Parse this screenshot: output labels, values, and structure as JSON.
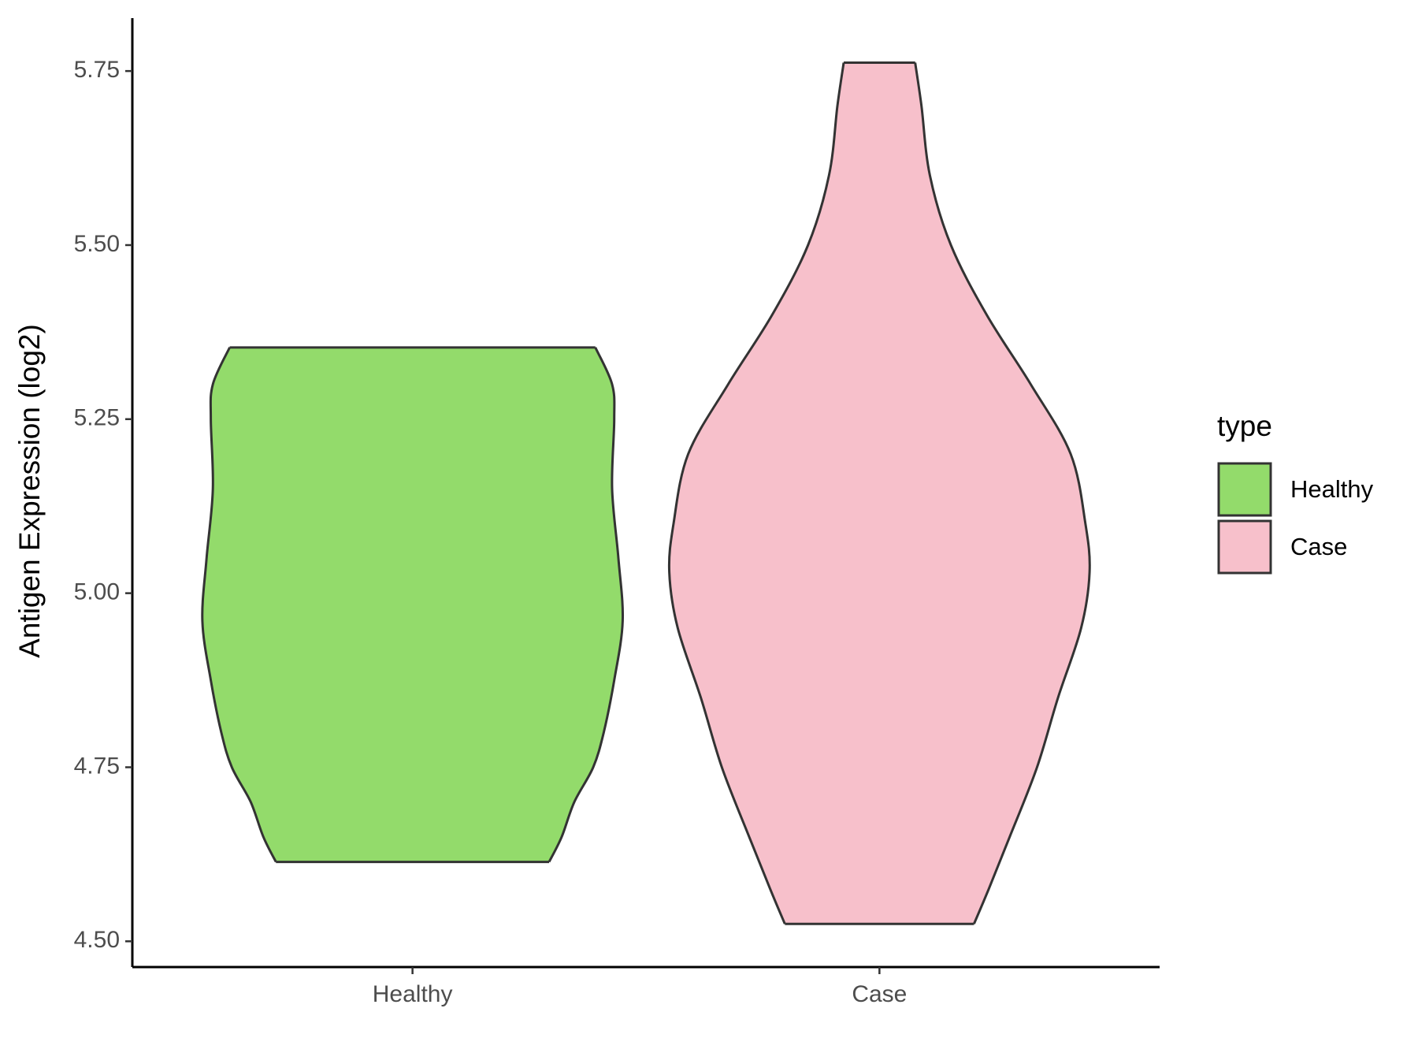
{
  "chart_data": {
    "type": "violin",
    "y_label": "Antigen Expression (log2)",
    "categories": [
      "Healthy",
      "Case"
    ],
    "series": [
      {
        "name": "Healthy",
        "color": "#93db6b",
        "y": [
          5.353,
          5.3,
          5.25,
          5.15,
          5.05,
          4.96,
          4.875,
          4.8,
          4.75,
          4.7,
          4.65,
          4.614
        ],
        "density": [
          0.87,
          0.95,
          0.96,
          0.95,
          0.98,
          1.0,
          0.96,
          0.91,
          0.86,
          0.77,
          0.71,
          0.65
        ]
      },
      {
        "name": "Case",
        "color": "#f7c0cb",
        "y": [
          5.762,
          5.7,
          5.6,
          5.5,
          5.4,
          5.3,
          5.2,
          5.1,
          5.03,
          4.95,
          4.85,
          4.75,
          4.65,
          4.575,
          4.525
        ],
        "density": [
          0.17,
          0.2,
          0.24,
          0.34,
          0.51,
          0.72,
          0.91,
          0.98,
          1.0,
          0.96,
          0.85,
          0.75,
          0.62,
          0.52,
          0.45
        ]
      }
    ],
    "ylim": [
      4.463,
      5.826
    ],
    "yticks": [
      {
        "value": 4.5,
        "label": "4.50"
      },
      4.75,
      {
        "value": 5,
        "label": "5.00"
      },
      5.25,
      {
        "value": 5.5,
        "label": "5.50"
      },
      5.75
    ],
    "legend_title": "type",
    "legend_position": "right"
  }
}
